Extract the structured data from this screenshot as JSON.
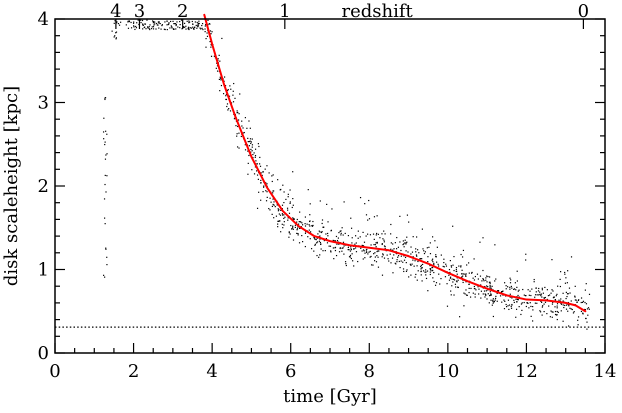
{
  "chart_data": {
    "type": "scatter",
    "xlabel": "time [Gyr]",
    "ylabel": "disk scaleheight [kpc]",
    "top_axis_label": "redshift",
    "xlim": [
      0,
      14
    ],
    "ylim": [
      0,
      4
    ],
    "x_ticks": [
      0,
      2,
      4,
      6,
      8,
      10,
      12,
      14
    ],
    "x_tick_labels": [
      "0",
      "2",
      "4",
      "6",
      "8",
      "10",
      "12",
      "14"
    ],
    "y_ticks": [
      0,
      1,
      2,
      3,
      4
    ],
    "y_tick_labels": [
      "0",
      "1",
      "2",
      "3",
      "4"
    ],
    "top_ticks": [
      {
        "label": "4",
        "time": 1.55
      },
      {
        "label": "3",
        "time": 2.15
      },
      {
        "label": "2",
        "time": 3.25
      },
      {
        "label": "1",
        "time": 5.85
      },
      {
        "label": "0",
        "time": 13.45
      }
    ],
    "x_minor_step": 0.5,
    "y_minor_step": 0.2,
    "reference_line": {
      "y": 0.31,
      "style": "dotted"
    },
    "series": [
      {
        "type": "line",
        "color": "#ff0000",
        "points": [
          [
            3.8,
            4.05
          ],
          [
            4.0,
            3.7
          ],
          [
            4.3,
            3.22
          ],
          [
            4.6,
            2.82
          ],
          [
            5.0,
            2.35
          ],
          [
            5.4,
            1.98
          ],
          [
            5.8,
            1.7
          ],
          [
            6.2,
            1.52
          ],
          [
            6.6,
            1.4
          ],
          [
            7.0,
            1.34
          ],
          [
            7.5,
            1.29
          ],
          [
            8.0,
            1.26
          ],
          [
            8.5,
            1.23
          ],
          [
            9.0,
            1.16
          ],
          [
            9.5,
            1.07
          ],
          [
            10.0,
            0.96
          ],
          [
            10.5,
            0.86
          ],
          [
            11.0,
            0.77
          ],
          [
            11.5,
            0.69
          ],
          [
            12.0,
            0.64
          ],
          [
            12.5,
            0.63
          ],
          [
            13.0,
            0.6
          ],
          [
            13.25,
            0.57
          ],
          [
            13.5,
            0.5
          ]
        ]
      },
      {
        "type": "scatter",
        "color": "#000000",
        "point_count": 1500
      }
    ]
  }
}
